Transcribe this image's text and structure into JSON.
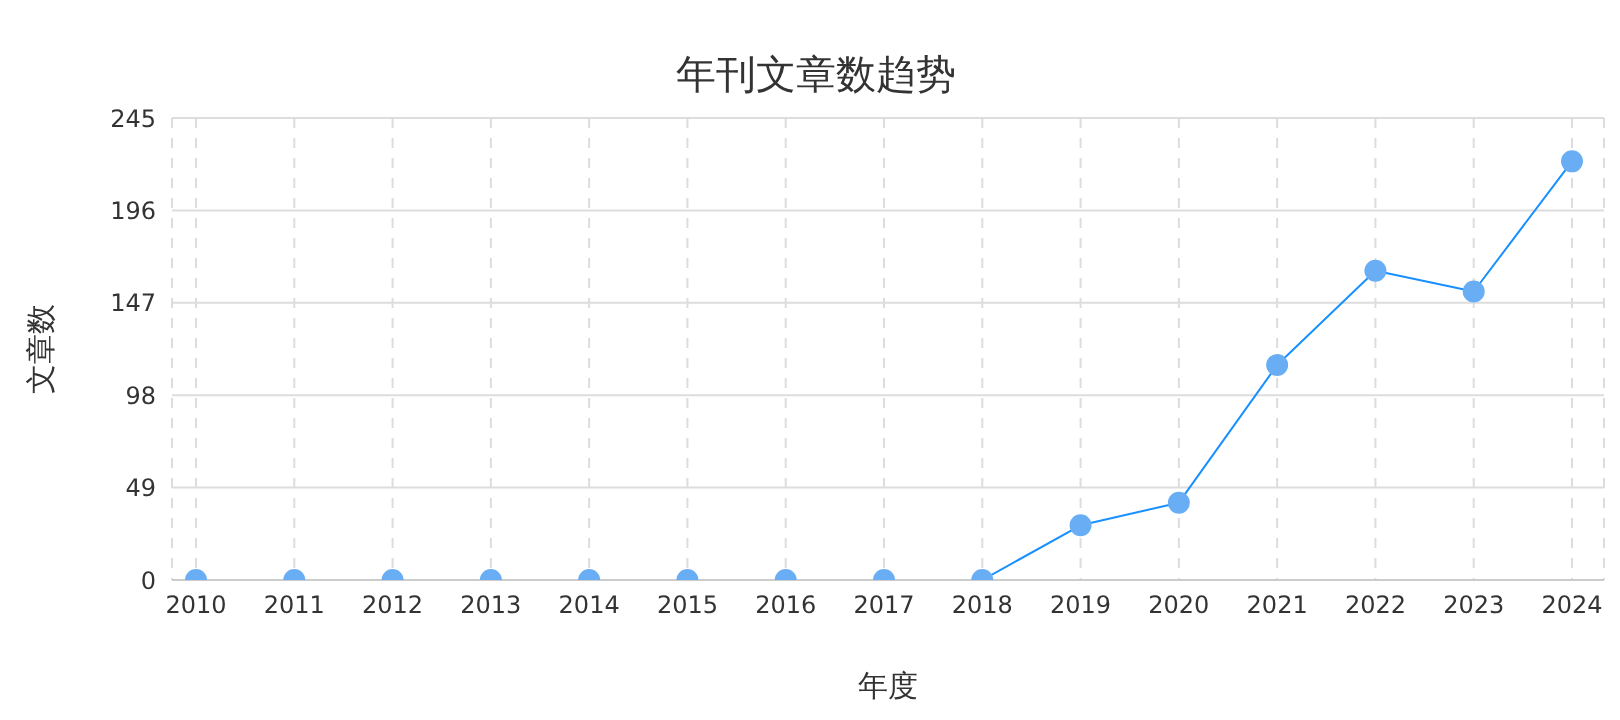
{
  "chart_data": {
    "type": "line",
    "title": "年刊文章数趋势",
    "xlabel": "年度",
    "ylabel": "文章数",
    "categories": [
      "2010",
      "2011",
      "2012",
      "2013",
      "2014",
      "2015",
      "2016",
      "2017",
      "2018",
      "2019",
      "2020",
      "2021",
      "2022",
      "2023",
      "2024"
    ],
    "series": [
      {
        "color": "#1890ff",
        "values": [
          0,
          0,
          0,
          0,
          0,
          0,
          0,
          0,
          0,
          29,
          41,
          114,
          164,
          153,
          222
        ]
      }
    ],
    "ylim": [
      0,
      245
    ],
    "yticks": [
      0,
      49,
      98,
      147,
      196,
      245
    ],
    "grid": true,
    "marker": "circle",
    "line_style": "solid"
  }
}
